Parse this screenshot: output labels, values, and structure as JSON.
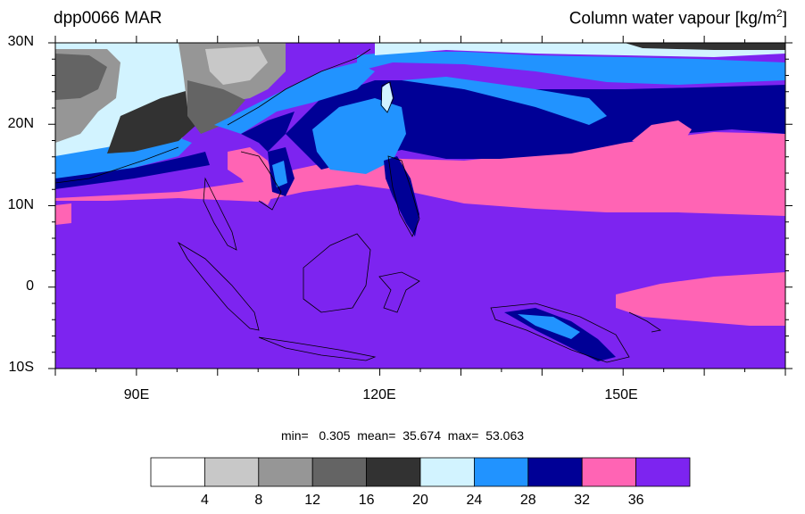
{
  "title_left": "dpp0066 MAR",
  "title_right": "Column water vapour [kg/m",
  "title_right_sup": "2",
  "title_right_end": "]",
  "lat_labels": [
    "30N",
    "20N",
    "10N",
    "0",
    "10S"
  ],
  "lon_labels": [
    "90E",
    "120E",
    "150E"
  ],
  "stats": {
    "min_label": "min=",
    "min": "0.305",
    "mean_label": "mean=",
    "mean": "35.674",
    "max_label": "max=",
    "max": "53.063"
  },
  "colorbar": {
    "colors": [
      "#ffffff",
      "#c8c8c8",
      "#969696",
      "#646464",
      "#323232",
      "#d2f3ff",
      "#2193ff",
      "#000096",
      "#ff64b4",
      "#7d24f0"
    ],
    "labels": [
      "4",
      "8",
      "12",
      "16",
      "20",
      "24",
      "28",
      "32",
      "36"
    ]
  },
  "map": {
    "lon_range": [
      80,
      170
    ],
    "lat_range": [
      -10,
      30
    ],
    "field_colors": {
      "dry_white": "#ffffff",
      "grey_light": "#c8c8c8",
      "grey_mid": "#969696",
      "grey_dark": "#646464",
      "grey_darkest": "#323232",
      "light_blue": "#d2f3ff",
      "blue": "#2193ff",
      "navy": "#000096",
      "pink": "#ff64b4",
      "purple": "#7d24f0",
      "coast": "#000000"
    }
  }
}
